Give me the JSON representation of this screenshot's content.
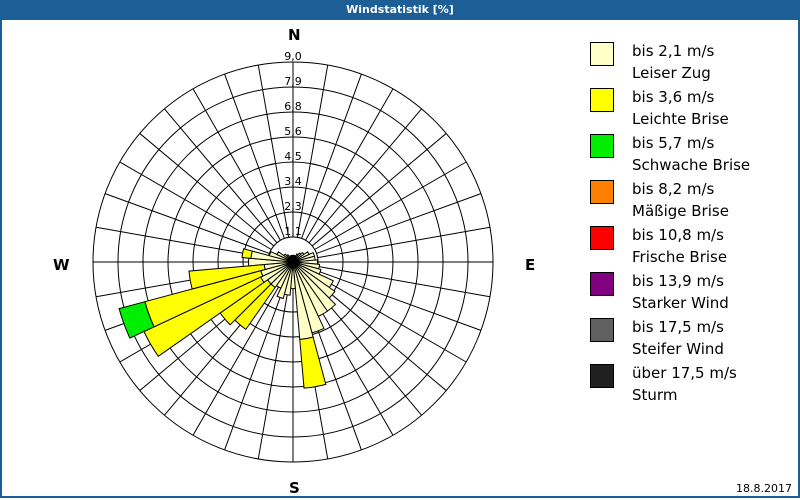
{
  "header": {
    "title": "Windstatistik [%]"
  },
  "compass": {
    "n": "N",
    "e": "E",
    "s": "S",
    "w": "W"
  },
  "footer": {
    "date": "18.8.2017"
  },
  "chart_data": {
    "type": "wind-rose",
    "title": "Windstatistik [%]",
    "unit": "%",
    "rings": [
      "1,1",
      "2,3",
      "3,4",
      "4,5",
      "5,6",
      "6,8",
      "7,9",
      "9,0"
    ],
    "rmax": 9.0,
    "legend_position": "right",
    "categories": [
      {
        "label": "bis 2,1 m/s",
        "name": "Leiser Zug",
        "color": "#ffffc8"
      },
      {
        "label": "bis 3,6 m/s",
        "name": "Leichte Brise",
        "color": "#ffff00"
      },
      {
        "label": "bis 5,7 m/s",
        "name": "Schwache Brise",
        "color": "#00ee00"
      },
      {
        "label": "bis 8,2 m/s",
        "name": "Mäßige Brise",
        "color": "#ff8000"
      },
      {
        "label": "bis 10,8 m/s",
        "name": "Frische Brise",
        "color": "#ff0000"
      },
      {
        "label": "bis 13,9 m/s",
        "name": "Starker Wind",
        "color": "#800080"
      },
      {
        "label": "bis 17,5 m/s",
        "name": "Steifer Wind",
        "color": "#606060"
      },
      {
        "label": "über 17,5 m/s",
        "name": "Sturm",
        "color": "#202020"
      }
    ],
    "directions_deg": [
      0,
      10,
      20,
      30,
      40,
      50,
      60,
      70,
      80,
      90,
      100,
      110,
      120,
      130,
      140,
      150,
      160,
      170,
      180,
      190,
      200,
      210,
      220,
      230,
      240,
      250,
      260,
      270,
      280,
      290,
      300,
      310,
      320,
      330,
      340,
      350
    ],
    "series": [
      {
        "name": "bis 2,1 m/s",
        "values": [
          0.3,
          0.3,
          0.3,
          0.4,
          0.5,
          0.6,
          0.8,
          1.0,
          1.0,
          1.1,
          1.2,
          1.3,
          2.0,
          2.3,
          2.7,
          2.7,
          3.3,
          3.5,
          1.2,
          1.5,
          1.7,
          1.3,
          1.4,
          1.4,
          1.6,
          1.5,
          1.3,
          2.0,
          1.9,
          1.1,
          0.8,
          0.5,
          0.4,
          0.3,
          0.3,
          0.3
        ]
      },
      {
        "name": "bis 3,6 m/s",
        "values": [
          0,
          0,
          0,
          0,
          0,
          0,
          0,
          0,
          0,
          0,
          0,
          0,
          0,
          0,
          0,
          0,
          0,
          2.2,
          0,
          0,
          0,
          0,
          2.3,
          2.6,
          5.8,
          5.4,
          3.4,
          0,
          0.4,
          0,
          0,
          0,
          0,
          0,
          0,
          0
        ]
      },
      {
        "name": "bis 5,7 m/s",
        "values": [
          0,
          0,
          0,
          0,
          0,
          0,
          0,
          0,
          0,
          0,
          0,
          0,
          0,
          0,
          0,
          0,
          0,
          0,
          0,
          0,
          0,
          0,
          0,
          0,
          0,
          1.2,
          0,
          0,
          0,
          0,
          0,
          0,
          0,
          0,
          0,
          0
        ]
      }
    ]
  }
}
